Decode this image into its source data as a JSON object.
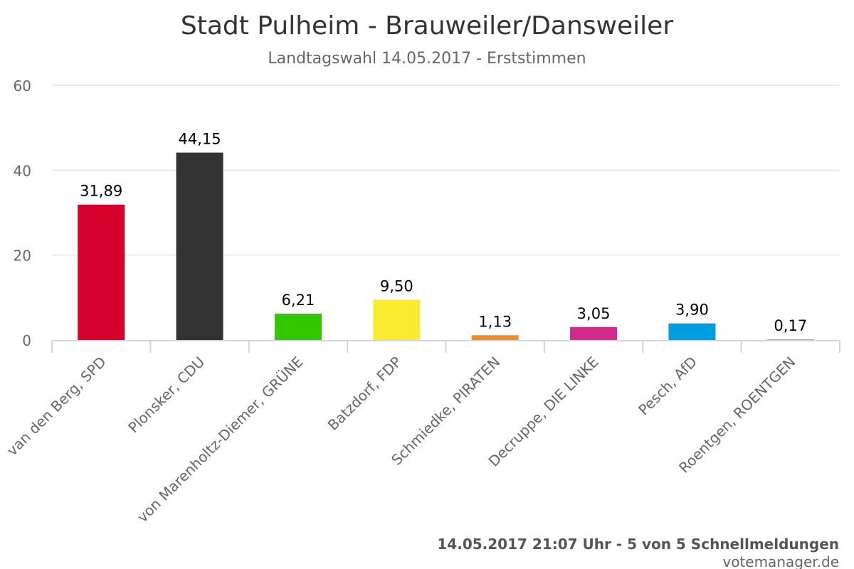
{
  "chart_data": {
    "type": "bar",
    "title": "Stadt Pulheim - Brauweiler/Dansweiler",
    "subtitle": "Landtagswahl 14.05.2017 - Erststimmen",
    "categories": [
      "van den Berg, SPD",
      "Plonsker, CDU",
      "von Marenholtz-Diemer, GRÜNE",
      "Batzdorf, FDP",
      "Schmiedke, PIRATEN",
      "Decruppe, DIE LINKE",
      "Pesch, AfD",
      "Roentgen, ROENTGEN"
    ],
    "values": [
      31.89,
      44.15,
      6.21,
      9.5,
      1.13,
      3.05,
      3.9,
      0.17
    ],
    "value_labels": [
      "31,89",
      "44,15",
      "6,21",
      "9,50",
      "1,13",
      "3,05",
      "3,90",
      "0,17"
    ],
    "colors": [
      "#d5002c",
      "#333333",
      "#32c800",
      "#f9ec30",
      "#f08a24",
      "#d02b8a",
      "#009ee0",
      "#aaaaaa"
    ],
    "ylim": [
      0,
      60
    ],
    "yticks": [
      0,
      20,
      40,
      60
    ],
    "grid": true,
    "xlabel": "",
    "ylabel": ""
  },
  "footer": {
    "timestamp": "14.05.2017 21:07 Uhr - 5 von 5 Schnellmeldungen",
    "credit": "votemanager.de"
  }
}
